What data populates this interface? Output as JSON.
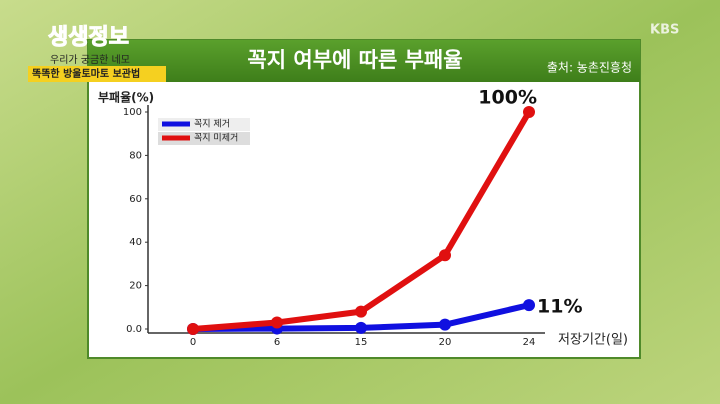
{
  "chart_data": {
    "type": "line",
    "title": "꼭지 여부에 따른 부패율",
    "source": "출처: 농촌진흥청",
    "y_label": "부패율(%)",
    "x_label": "저장기간(일)",
    "categories": [
      "0",
      "6",
      "15",
      "20",
      "24"
    ],
    "series": [
      {
        "name": "꼭지 제거",
        "color": "#1010e0",
        "values": [
          0,
          0.2,
          0.5,
          2,
          11
        ],
        "value_labels": [
          null,
          null,
          null,
          null,
          "11%"
        ]
      },
      {
        "name": "꼭지 미제거",
        "color": "#e01010",
        "values": [
          0,
          3,
          8,
          34,
          100
        ],
        "value_labels": [
          null,
          null,
          null,
          null,
          "100%"
        ]
      }
    ],
    "ylim": [
      0,
      100
    ],
    "yticks": [
      {
        "value": 0,
        "label": "0.0"
      },
      20,
      40,
      60,
      80,
      100
    ],
    "grid": false,
    "legend": "upper-left"
  },
  "overlay": {
    "program": "생생정보",
    "corner_lines": [
      "우리가 궁금한 네모",
      "똑똑한 방울토마토 보관법"
    ],
    "channel": "KBS"
  }
}
